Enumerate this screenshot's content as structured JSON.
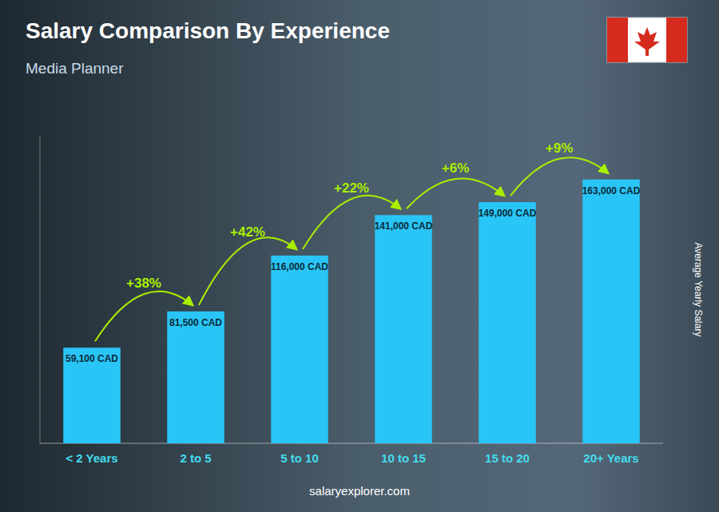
{
  "chart_data": {
    "type": "bar",
    "title": "Salary Comparison By Experience",
    "subtitle": "Media Planner",
    "categories": [
      "< 2 Years",
      "2 to 5",
      "5 to 10",
      "10 to 15",
      "15 to 20",
      "20+ Years"
    ],
    "values": [
      59100,
      81500,
      116000,
      141000,
      149000,
      163000
    ],
    "value_labels": [
      "59,100 CAD",
      "81,500 CAD",
      "116,000 CAD",
      "141,000 CAD",
      "149,000 CAD",
      "163,000 CAD"
    ],
    "annotations": [
      "+38%",
      "+42%",
      "+22%",
      "+6%",
      "+9%"
    ],
    "y_label": "Average Yearly Salary",
    "watermark": "salaryexplorer.com",
    "color": "#29c5f6",
    "ylim": [
      0,
      190000
    ],
    "data_labels": true,
    "tick_labels": false,
    "grid": false
  }
}
